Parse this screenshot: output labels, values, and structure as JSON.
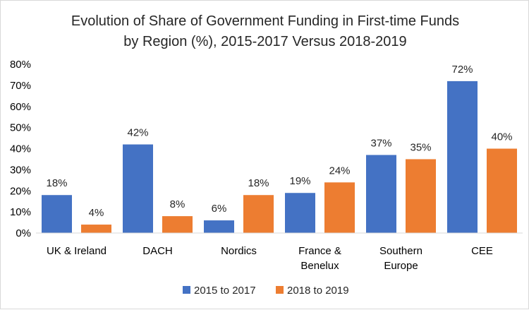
{
  "chart_data": {
    "type": "bar",
    "title": "Evolution of Share of Government Funding in First-time Funds by Region (%), 2015-2017 Versus 2018-2019",
    "title_lines": [
      "Evolution of Share of Government Funding in First-time Funds",
      "by Region (%), 2015-2017 Versus 2018-2019"
    ],
    "categories": [
      "UK & Ireland",
      "DACH",
      "Nordics",
      "France & Benelux",
      "Southern Europe",
      "CEE"
    ],
    "category_lines": [
      [
        "UK & Ireland"
      ],
      [
        "DACH"
      ],
      [
        "Nordics"
      ],
      [
        "France &",
        "Benelux"
      ],
      [
        "Southern",
        "Europe"
      ],
      [
        "CEE"
      ]
    ],
    "series": [
      {
        "name": "2015 to 2017",
        "color": "#4472C4",
        "values": [
          18,
          42,
          6,
          19,
          37,
          72
        ]
      },
      {
        "name": "2018 to 2019",
        "color": "#ED7D31",
        "values": [
          4,
          8,
          18,
          24,
          35,
          40
        ]
      }
    ],
    "data_label_suffix": "%",
    "xlabel": "",
    "ylabel": "",
    "ylim": [
      0,
      80
    ],
    "yticks": [
      "0%",
      "10%",
      "20%",
      "30%",
      "40%",
      "50%",
      "60%",
      "70%",
      "80%"
    ],
    "ytick_values": [
      0,
      10,
      20,
      30,
      40,
      50,
      60,
      70,
      80
    ],
    "grid": false,
    "legend_position": "bottom"
  }
}
